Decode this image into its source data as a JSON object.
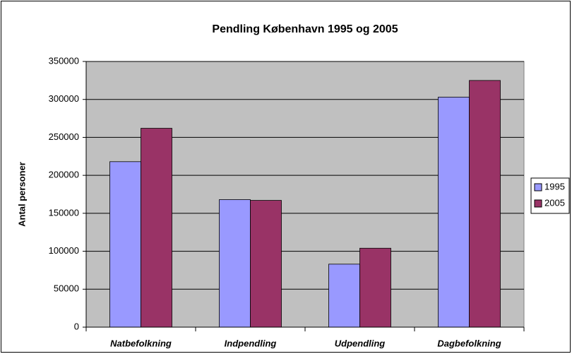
{
  "chart_data": {
    "type": "bar",
    "title": "Pendling København 1995 og 2005",
    "y_label": "Antal personer",
    "categories": [
      "Natbefolkning",
      "Indpendling",
      "Udpendling",
      "Dagbefolkning"
    ],
    "series": [
      {
        "name": "1995",
        "color": "#9999ff",
        "values": [
          218000,
          168000,
          83000,
          303000
        ]
      },
      {
        "name": "2005",
        "color": "#993366",
        "values": [
          262000,
          167000,
          104000,
          325000
        ]
      }
    ],
    "ylim": [
      0,
      350000
    ],
    "yticks": [
      0,
      50000,
      100000,
      150000,
      200000,
      250000,
      300000,
      350000
    ],
    "grid": true,
    "legend": "right"
  }
}
